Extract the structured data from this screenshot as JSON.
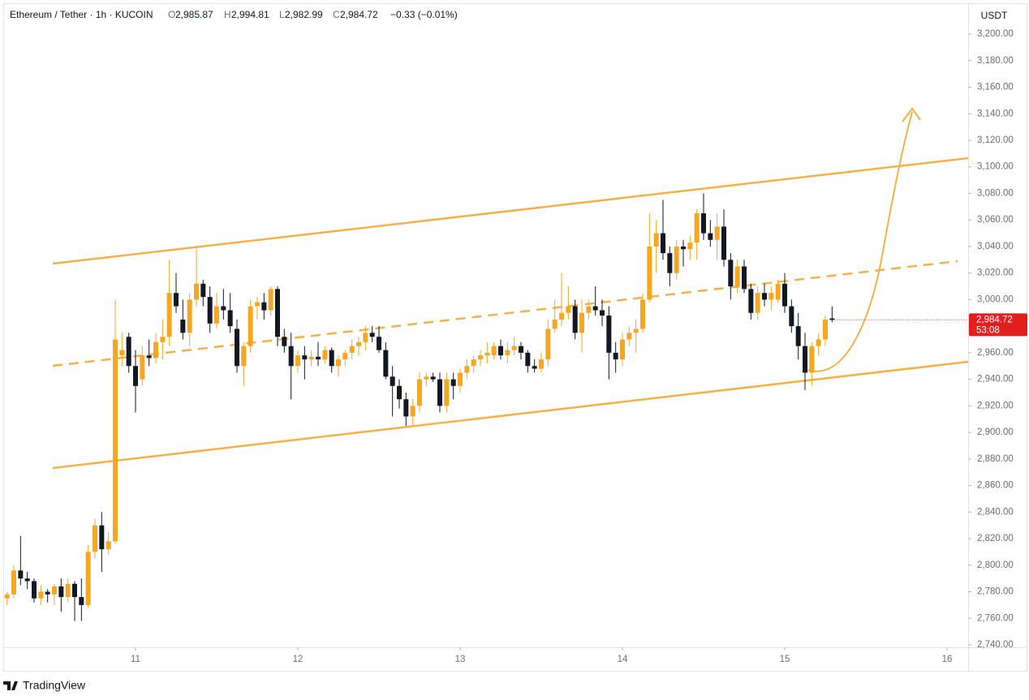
{
  "header": {
    "title": "Ethereum / Tether · 1h · KUCOIN",
    "o_label": "O",
    "o": {
      "value": 2985.87,
      "label": "2,985.87"
    },
    "h_label": "H",
    "h": {
      "value": 2994.81,
      "label": "2,994.81"
    },
    "l_label": "L",
    "l": {
      "value": 2982.99,
      "label": "2,982.99"
    },
    "c_label": "C",
    "c": {
      "value": 2984.72,
      "label": "2,984.72"
    },
    "change": "−0.33 (−0.01%)"
  },
  "footer": {
    "brand": "TradingView"
  },
  "chart_data": {
    "type": "candlestick",
    "y_unit": "USDT",
    "up_color": "#f5a623",
    "down_color": "#131722",
    "xlim": [
      -19.44,
      123.12
    ],
    "xticks": [
      {
        "value": 0,
        "label": "11"
      },
      {
        "value": 24,
        "label": "12"
      },
      {
        "value": 48,
        "label": "13"
      },
      {
        "value": 72,
        "label": "14"
      },
      {
        "value": 96,
        "label": "15"
      },
      {
        "value": 120,
        "label": "16"
      }
    ],
    "ylim": [
      2738.8,
      3222.6
    ],
    "yticks": [
      {
        "value": 2740,
        "label": "2,740.00"
      },
      {
        "value": 2760,
        "label": "2,760.00"
      },
      {
        "value": 2780,
        "label": "2,780.00"
      },
      {
        "value": 2800,
        "label": "2,800.00"
      },
      {
        "value": 2820,
        "label": "2,820.00"
      },
      {
        "value": 2840,
        "label": "2,840.00"
      },
      {
        "value": 2860,
        "label": "2,860.00"
      },
      {
        "value": 2880,
        "label": "2,880.00"
      },
      {
        "value": 2900,
        "label": "2,900.00"
      },
      {
        "value": 2920,
        "label": "2,920.00"
      },
      {
        "value": 2940,
        "label": "2,940.00"
      },
      {
        "value": 2960,
        "label": "2,960.00"
      },
      {
        "value": 2980,
        "label": "2,980.00"
      },
      {
        "value": 3000,
        "label": "3,000.00"
      },
      {
        "value": 3020,
        "label": "3,020.00"
      },
      {
        "value": 3040,
        "label": "3,040.00"
      },
      {
        "value": 3060,
        "label": "3,060.00"
      },
      {
        "value": 3080,
        "label": "3,080.00"
      },
      {
        "value": 3100,
        "label": "3,100.00"
      },
      {
        "value": 3120,
        "label": "3,120.00"
      },
      {
        "value": 3140,
        "label": "3,140.00"
      },
      {
        "value": 3160,
        "label": "3,160.00"
      },
      {
        "value": 3180,
        "label": "3,180.00"
      },
      {
        "value": 3200,
        "label": "3,200.00"
      }
    ],
    "last_price": {
      "value": 2984.72,
      "label": "2,984.72"
    },
    "countdown": "53:08",
    "x": [
      -19,
      -18,
      -17,
      -16,
      -15,
      -14,
      -13,
      -12,
      -11,
      -10,
      -9,
      -8,
      -7,
      -6,
      -5,
      -4,
      -3,
      -2,
      -1,
      0,
      1,
      2,
      3,
      4,
      5,
      6,
      7,
      8,
      9,
      10,
      11,
      12,
      13,
      14,
      15,
      16,
      17,
      18,
      19,
      20,
      21,
      22,
      23,
      24,
      25,
      26,
      27,
      28,
      29,
      30,
      31,
      32,
      33,
      34,
      35,
      36,
      37,
      38,
      39,
      40,
      41,
      42,
      43,
      44,
      45,
      46,
      47,
      48,
      49,
      50,
      51,
      52,
      53,
      54,
      55,
      56,
      57,
      58,
      59,
      60,
      61,
      62,
      63,
      64,
      65,
      66,
      67,
      68,
      69,
      70,
      71,
      72,
      73,
      74,
      75,
      76,
      77,
      78,
      79,
      80,
      81,
      82,
      83,
      84,
      85,
      86,
      87,
      88,
      89,
      90,
      91,
      92,
      93,
      94,
      95,
      96,
      97,
      98,
      99,
      100,
      101,
      102,
      103
    ],
    "open": [
      2775,
      2778,
      2796,
      2790,
      2788,
      2775,
      2780,
      2778,
      2784,
      2776,
      2786,
      2776,
      2770,
      2810,
      2830,
      2812,
      2818,
      2958,
      2972,
      2950,
      2940,
      2958,
      2956,
      2968,
      2972,
      3005,
      2985,
      2975,
      3000,
      3012,
      3002,
      2982,
      2995,
      2992,
      2978,
      2950,
      2965,
      2995,
      2998,
      2992,
      3008,
      2972,
      2965,
      2950,
      2958,
      2955,
      2957,
      2955,
      2962,
      2950,
      2955,
      2960,
      2965,
      2968,
      2975,
      2972,
      2962,
      2942,
      2935,
      2925,
      2912,
      2920,
      2940,
      2942,
      2940,
      2920,
      2940,
      2935,
      2945,
      2950,
      2955,
      2958,
      2958,
      2965,
      2958,
      2962,
      2965,
      2960,
      2950,
      2948,
      2955,
      2978,
      2985,
      2990,
      2995,
      2975,
      2990,
      2995,
      2992,
      2988,
      2960,
      2955,
      2970,
      2975,
      2978,
      3000,
      3040,
      3050,
      3035,
      3020,
      3040,
      3038,
      3043,
      3065,
      3050,
      3045,
      3055,
      3030,
      3010,
      3025,
      3008,
      2990,
      3005,
      3000,
      3000,
      3012,
      2995,
      2980,
      2965,
      2945,
      2965,
      2970,
      2985.87
    ],
    "high": [
      2780,
      2800,
      2822,
      2795,
      2790,
      2785,
      2782,
      2786,
      2790,
      2790,
      2788,
      2790,
      2815,
      2835,
      2840,
      2825,
      3000,
      2975,
      2975,
      2962,
      2965,
      2970,
      2975,
      2985,
      3030,
      3020,
      3000,
      3005,
      3040,
      3015,
      3010,
      3005,
      3008,
      3005,
      2985,
      2968,
      3000,
      3002,
      3005,
      3010,
      3010,
      2978,
      2975,
      2962,
      2965,
      2962,
      2968,
      2965,
      2964,
      2958,
      2962,
      2970,
      2972,
      2980,
      2980,
      2980,
      2968,
      2950,
      2940,
      2930,
      2925,
      2945,
      2945,
      2945,
      2945,
      2945,
      2945,
      2948,
      2955,
      2958,
      2962,
      2968,
      2968,
      2970,
      2968,
      2972,
      2968,
      2962,
      2955,
      2960,
      2985,
      3000,
      3020,
      3010,
      3000,
      3000,
      3000,
      3010,
      3000,
      2995,
      2968,
      2975,
      2980,
      2985,
      3005,
      3065,
      3060,
      3075,
      3040,
      3045,
      3045,
      3048,
      3068,
      3080,
      3060,
      3065,
      3068,
      3035,
      3030,
      3030,
      3012,
      3010,
      3012,
      3010,
      3015,
      3020,
      3000,
      2990,
      2975,
      2968,
      2975,
      2988,
      2994.81
    ],
    "low": [
      2770,
      2775,
      2785,
      2782,
      2772,
      2770,
      2772,
      2770,
      2765,
      2772,
      2758,
      2758,
      2768,
      2805,
      2795,
      2808,
      2816,
      2950,
      2945,
      2915,
      2935,
      2950,
      2952,
      2955,
      2965,
      2990,
      2970,
      2965,
      2995,
      2995,
      2975,
      2978,
      2985,
      2975,
      2945,
      2935,
      2960,
      2985,
      2985,
      2988,
      2965,
      2960,
      2925,
      2945,
      2940,
      2950,
      2950,
      2952,
      2945,
      2942,
      2950,
      2955,
      2958,
      2962,
      2968,
      2960,
      2940,
      2912,
      2918,
      2905,
      2905,
      2915,
      2935,
      2938,
      2915,
      2915,
      2925,
      2930,
      2940,
      2945,
      2950,
      2952,
      2955,
      2955,
      2952,
      2958,
      2955,
      2945,
      2945,
      2945,
      2950,
      2975,
      2980,
      2985,
      2970,
      2960,
      2985,
      2988,
      2980,
      2940,
      2945,
      2950,
      2965,
      2960,
      2975,
      2998,
      3020,
      3030,
      3010,
      3015,
      3025,
      3030,
      3030,
      3045,
      3040,
      3030,
      3025,
      3000,
      3005,
      3005,
      2985,
      2985,
      2995,
      2992,
      2998,
      2990,
      2975,
      2955,
      2932,
      2935,
      2958,
      2965,
      2982.99
    ],
    "close": [
      2778,
      2796,
      2790,
      2788,
      2775,
      2780,
      2778,
      2784,
      2776,
      2786,
      2776,
      2770,
      2810,
      2830,
      2812,
      2818,
      2970,
      2962,
      2950,
      2935,
      2958,
      2956,
      2968,
      2972,
      3005,
      2995,
      2975,
      3000,
      3012,
      3002,
      2982,
      2995,
      2992,
      2980,
      2950,
      2965,
      2995,
      2998,
      2992,
      3008,
      2972,
      2965,
      2950,
      2958,
      2955,
      2957,
      2955,
      2962,
      2950,
      2955,
      2960,
      2965,
      2968,
      2975,
      2972,
      2962,
      2942,
      2935,
      2925,
      2912,
      2920,
      2940,
      2942,
      2940,
      2920,
      2940,
      2935,
      2945,
      2950,
      2955,
      2958,
      2960,
      2965,
      2958,
      2962,
      2965,
      2960,
      2950,
      2948,
      2955,
      2978,
      2985,
      2990,
      2995,
      2975,
      2990,
      2995,
      2992,
      2988,
      2960,
      2955,
      2970,
      2975,
      2978,
      3000,
      3040,
      3050,
      3035,
      3020,
      3040,
      3038,
      3043,
      3065,
      3050,
      3045,
      3055,
      3030,
      3010,
      3025,
      3008,
      2990,
      3005,
      3000,
      3005,
      3012,
      2995,
      2980,
      2965,
      2945,
      2965,
      2970,
      2985,
      2984.72
    ]
  }
}
